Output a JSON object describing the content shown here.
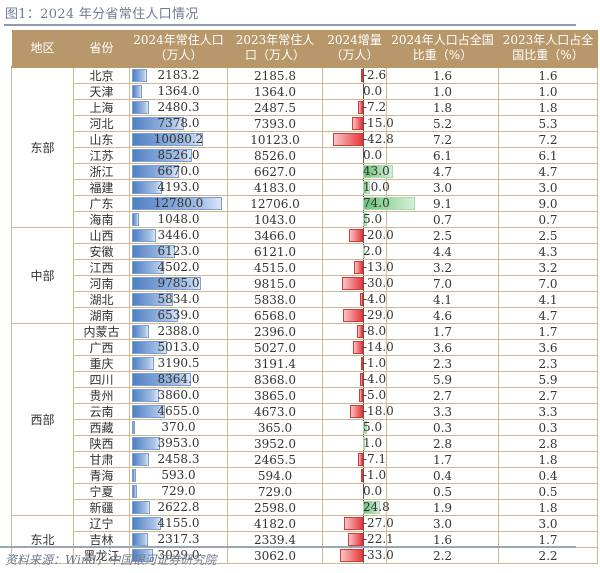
{
  "title": "图1：2024 年分省常住人口情况",
  "source": "资料来源：Wind，中国银河证券研究院",
  "headers": {
    "region": "地区",
    "province": "省份",
    "pop2024_l1": "2024年常住人口",
    "pop2024_l2": "（万人）",
    "pop2023_l1": "2023年常住人",
    "pop2023_l2": "口（万人）",
    "delta_l1": "2024增量",
    "delta_l2": "（万人）",
    "share2024_l1": "2024年人口占全国",
    "share2024_l2": "比重（%）",
    "share2023_l1": "2023年人口占全",
    "share2023_l2": "国比重（%）"
  },
  "colors": {
    "header_bg": "#b8976a",
    "bar_blue": "#4f7fc4",
    "bar_red": "#e8383d",
    "bar_green": "#6cc27d",
    "title": "#6d7b92"
  },
  "regions": [
    {
      "name": "东部",
      "rows": 10
    },
    {
      "name": "中部",
      "rows": 6
    },
    {
      "name": "西部",
      "rows": 12
    },
    {
      "name": "东北",
      "rows": 3
    }
  ],
  "chart_data": {
    "type": "table",
    "title": "图1：2024 年分省常住人口情况",
    "columns": [
      "地区",
      "省份",
      "2024年常住人口（万人）",
      "2023年常住人口（万人）",
      "2024增量（万人）",
      "2024年人口占全国比重（%）",
      "2023年人口占全国比重（%）"
    ],
    "rows": [
      {
        "region": "东部",
        "province": "北京",
        "pop2024": "2183.2",
        "pop2023": "2185.8",
        "delta": "-2.6",
        "share2024": "1.6",
        "share2023": "1.6"
      },
      {
        "region": "东部",
        "province": "天津",
        "pop2024": "1364.0",
        "pop2023": "1364.0",
        "delta": "0.0",
        "share2024": "1.0",
        "share2023": "1.0"
      },
      {
        "region": "东部",
        "province": "上海",
        "pop2024": "2480.3",
        "pop2023": "2487.5",
        "delta": "-7.2",
        "share2024": "1.8",
        "share2023": "1.8"
      },
      {
        "region": "东部",
        "province": "河北",
        "pop2024": "7378.0",
        "pop2023": "7393.0",
        "delta": "-15.0",
        "share2024": "5.2",
        "share2023": "5.3"
      },
      {
        "region": "东部",
        "province": "山东",
        "pop2024": "10080.2",
        "pop2023": "10123.0",
        "delta": "-42.8",
        "share2024": "7.2",
        "share2023": "7.2"
      },
      {
        "region": "东部",
        "province": "江苏",
        "pop2024": "8526.0",
        "pop2023": "8526.0",
        "delta": "0.0",
        "share2024": "6.1",
        "share2023": "6.1"
      },
      {
        "region": "东部",
        "province": "浙江",
        "pop2024": "6670.0",
        "pop2023": "6627.0",
        "delta": "43.0",
        "share2024": "4.7",
        "share2023": "4.7"
      },
      {
        "region": "东部",
        "province": "福建",
        "pop2024": "4193.0",
        "pop2023": "4183.0",
        "delta": "10.0",
        "share2024": "3.0",
        "share2023": "3.0"
      },
      {
        "region": "东部",
        "province": "广东",
        "pop2024": "12780.0",
        "pop2023": "12706.0",
        "delta": "74.0",
        "share2024": "9.1",
        "share2023": "9.0"
      },
      {
        "region": "东部",
        "province": "海南",
        "pop2024": "1048.0",
        "pop2023": "1043.0",
        "delta": "5.0",
        "share2024": "0.7",
        "share2023": "0.7"
      },
      {
        "region": "中部",
        "province": "山西",
        "pop2024": "3446.0",
        "pop2023": "3466.0",
        "delta": "-20.0",
        "share2024": "2.5",
        "share2023": "2.5"
      },
      {
        "region": "中部",
        "province": "安徽",
        "pop2024": "6123.0",
        "pop2023": "6121.0",
        "delta": "2.0",
        "share2024": "4.4",
        "share2023": "4.3"
      },
      {
        "region": "中部",
        "province": "江西",
        "pop2024": "4502.0",
        "pop2023": "4515.0",
        "delta": "-13.0",
        "share2024": "3.2",
        "share2023": "3.2"
      },
      {
        "region": "中部",
        "province": "河南",
        "pop2024": "9785.0",
        "pop2023": "9815.0",
        "delta": "-30.0",
        "share2024": "7.0",
        "share2023": "7.0"
      },
      {
        "region": "中部",
        "province": "湖北",
        "pop2024": "5834.0",
        "pop2023": "5838.0",
        "delta": "-4.0",
        "share2024": "4.1",
        "share2023": "4.1"
      },
      {
        "region": "中部",
        "province": "湖南",
        "pop2024": "6539.0",
        "pop2023": "6568.0",
        "delta": "-29.0",
        "share2024": "4.6",
        "share2023": "4.7"
      },
      {
        "region": "西部",
        "province": "内蒙古",
        "pop2024": "2388.0",
        "pop2023": "2396.0",
        "delta": "-8.0",
        "share2024": "1.7",
        "share2023": "1.7"
      },
      {
        "region": "西部",
        "province": "广西",
        "pop2024": "5013.0",
        "pop2023": "5027.0",
        "delta": "-14.0",
        "share2024": "3.6",
        "share2023": "3.6"
      },
      {
        "region": "西部",
        "province": "重庆",
        "pop2024": "3190.5",
        "pop2023": "3191.4",
        "delta": "-1.0",
        "share2024": "2.3",
        "share2023": "2.3"
      },
      {
        "region": "西部",
        "province": "四川",
        "pop2024": "8364.0",
        "pop2023": "8368.0",
        "delta": "-4.0",
        "share2024": "5.9",
        "share2023": "5.9"
      },
      {
        "region": "西部",
        "province": "贵州",
        "pop2024": "3860.0",
        "pop2023": "3865.0",
        "delta": "-5.0",
        "share2024": "2.7",
        "share2023": "2.7"
      },
      {
        "region": "西部",
        "province": "云南",
        "pop2024": "4655.0",
        "pop2023": "4673.0",
        "delta": "-18.0",
        "share2024": "3.3",
        "share2023": "3.3"
      },
      {
        "region": "西部",
        "province": "西藏",
        "pop2024": "370.0",
        "pop2023": "365.0",
        "delta": "5.0",
        "share2024": "0.3",
        "share2023": "0.3"
      },
      {
        "region": "西部",
        "province": "陕西",
        "pop2024": "3953.0",
        "pop2023": "3952.0",
        "delta": "1.0",
        "share2024": "2.8",
        "share2023": "2.8"
      },
      {
        "region": "西部",
        "province": "甘肃",
        "pop2024": "2458.3",
        "pop2023": "2465.5",
        "delta": "-7.1",
        "share2024": "1.7",
        "share2023": "1.8"
      },
      {
        "region": "西部",
        "province": "青海",
        "pop2024": "593.0",
        "pop2023": "594.0",
        "delta": "-1.0",
        "share2024": "0.4",
        "share2023": "0.4"
      },
      {
        "region": "西部",
        "province": "宁夏",
        "pop2024": "729.0",
        "pop2023": "729.0",
        "delta": "0.0",
        "share2024": "0.5",
        "share2023": "0.5"
      },
      {
        "region": "西部",
        "province": "新疆",
        "pop2024": "2622.8",
        "pop2023": "2598.0",
        "delta": "24.8",
        "share2024": "1.9",
        "share2023": "1.8"
      },
      {
        "region": "东北",
        "province": "辽宁",
        "pop2024": "4155.0",
        "pop2023": "4182.0",
        "delta": "-27.0",
        "share2024": "3.0",
        "share2023": "3.0"
      },
      {
        "region": "东北",
        "province": "吉林",
        "pop2024": "2317.3",
        "pop2023": "2339.4",
        "delta": "-22.1",
        "share2024": "1.6",
        "share2023": "1.7"
      },
      {
        "region": "东北",
        "province": "黑龙江",
        "pop2024": "3029.0",
        "pop2023": "3062.0",
        "delta": "-33.0",
        "share2024": "2.2",
        "share2023": "2.2"
      }
    ],
    "data_bars": {
      "pop2024": {
        "max": 12780.0,
        "color": "#4f7fc4"
      },
      "delta": {
        "neg_color": "#e8383d",
        "pos_color": "#6cc27d",
        "min": -42.8,
        "max": 74.0
      }
    }
  }
}
